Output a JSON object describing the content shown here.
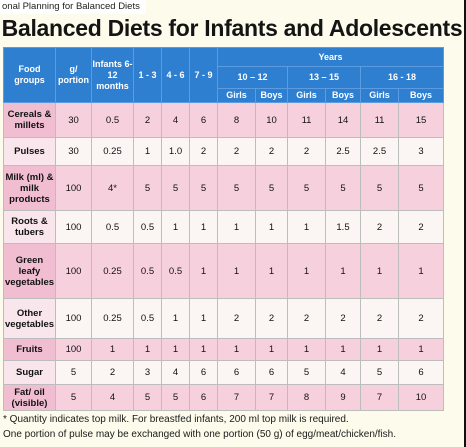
{
  "window": {
    "caption": "onal Planning for Balanced Diets"
  },
  "title": "Balanced Diets  for Infants and Adolescents",
  "table": {
    "header": {
      "food_groups": "Food groups",
      "portion": "g/ portion",
      "infants": "Infants 6-12 months",
      "age_1_3": "1 - 3",
      "age_4_6": "4 - 6",
      "age_7_9": "7 - 9",
      "years": "Years",
      "age_10_12": "10 – 12",
      "age_13_15": "13 – 15",
      "age_16_18": "16 - 18",
      "girls": "Girls",
      "boys": "Boys"
    },
    "rows": [
      {
        "food": "Cereals & millets",
        "portion": "30",
        "infants": "0.5",
        "a1_3": "2",
        "a4_6": "4",
        "a7_9": "6",
        "g10_12": "8",
        "b10_12": "10",
        "g13_15": "11",
        "b13_15": "14",
        "g16_18": "11",
        "b16_18": "15"
      },
      {
        "food": "Pulses",
        "portion": "30",
        "infants": "0.25",
        "a1_3": "1",
        "a4_6": "1.0",
        "a7_9": "2",
        "g10_12": "2",
        "b10_12": "2",
        "g13_15": "2",
        "b13_15": "2.5",
        "g16_18": "2.5",
        "b16_18": "3"
      },
      {
        "food": "Milk (ml) & milk products",
        "portion": "100",
        "infants": "4*",
        "a1_3": "5",
        "a4_6": "5",
        "a7_9": "5",
        "g10_12": "5",
        "b10_12": "5",
        "g13_15": "5",
        "b13_15": "5",
        "g16_18": "5",
        "b16_18": "5"
      },
      {
        "food": "Roots & tubers",
        "portion": "100",
        "infants": "0.5",
        "a1_3": "0.5",
        "a4_6": "1",
        "a7_9": "1",
        "g10_12": "1",
        "b10_12": "1",
        "g13_15": "1",
        "b13_15": "1.5",
        "g16_18": "2",
        "b16_18": "2"
      },
      {
        "food": "Green leafy vegetables",
        "portion": "100",
        "infants": "0.25",
        "a1_3": "0.5",
        "a4_6": "0.5",
        "a7_9": "1",
        "g10_12": "1",
        "b10_12": "1",
        "g13_15": "1",
        "b13_15": "1",
        "g16_18": "1",
        "b16_18": "1"
      },
      {
        "food": "Other vegetables",
        "portion": "100",
        "infants": "0.25",
        "a1_3": "0.5",
        "a4_6": "1",
        "a7_9": "1",
        "g10_12": "2",
        "b10_12": "2",
        "g13_15": "2",
        "b13_15": "2",
        "g16_18": "2",
        "b16_18": "2"
      },
      {
        "food": "Fruits",
        "portion": "100",
        "infants": "1",
        "a1_3": "1",
        "a4_6": "1",
        "a7_9": "1",
        "g10_12": "1",
        "b10_12": "1",
        "g13_15": "1",
        "b13_15": "1",
        "g16_18": "1",
        "b16_18": "1"
      },
      {
        "food": "Sugar",
        "portion": "5",
        "infants": "2",
        "a1_3": "3",
        "a4_6": "4",
        "a7_9": "6",
        "g10_12": "6",
        "b10_12": "6",
        "g13_15": "5",
        "b13_15": "4",
        "g16_18": "5",
        "b16_18": "6"
      },
      {
        "food": "Fat/ oil (visible)",
        "portion": "5",
        "infants": "4",
        "a1_3": "5",
        "a4_6": "5",
        "a7_9": "6",
        "g10_12": "7",
        "b10_12": "7",
        "g13_15": "8",
        "b13_15": "9",
        "g16_18": "7",
        "b16_18": "10"
      }
    ]
  },
  "footnotes": {
    "line1": "* Quantity indicates top milk. For breastfed infants, 200 ml top milk is required.",
    "line2": "One portion of pulse may be exchanged with one portion (50 g) of egg/meat/chicken/fish."
  },
  "colors": {
    "header_blue": "#2f7fd0",
    "row_pink": "#f7d0de",
    "row_white": "#fbf6f3",
    "page_bg": "#fdfcec"
  }
}
